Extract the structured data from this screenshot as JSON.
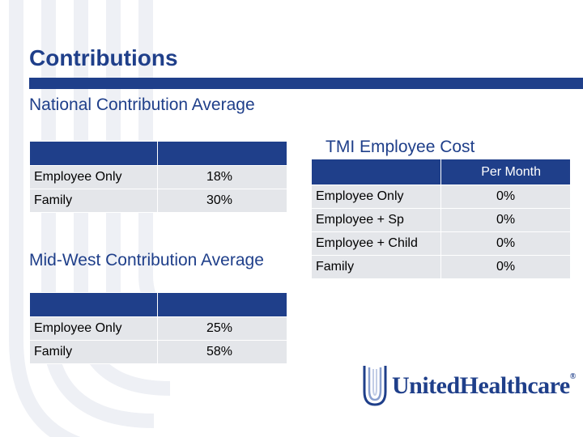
{
  "slide": {
    "title": "Contributions",
    "colors": {
      "primary": "#1f3f8a",
      "cell": "#e4e6ea"
    }
  },
  "national": {
    "heading": "National Contribution Average",
    "rows": [
      {
        "label": "Employee Only",
        "value": "18%"
      },
      {
        "label": "Family",
        "value": "30%"
      }
    ]
  },
  "midwest": {
    "heading": "Mid-West Contribution Average",
    "rows": [
      {
        "label": "Employee Only",
        "value": "25%"
      },
      {
        "label": "Family",
        "value": "58%"
      }
    ]
  },
  "tmi": {
    "heading": "TMI Employee Cost",
    "column_header": "Per Month",
    "rows": [
      {
        "label": "Employee Only",
        "value": "0%"
      },
      {
        "label": "Employee + Sp",
        "value": "0%"
      },
      {
        "label": "Employee + Child",
        "value": "0%"
      },
      {
        "label": "Family",
        "value": "0%"
      }
    ]
  },
  "logo": {
    "text": "UnitedHealthcare",
    "mark": "®",
    "icon": "uhc-shield-icon"
  }
}
